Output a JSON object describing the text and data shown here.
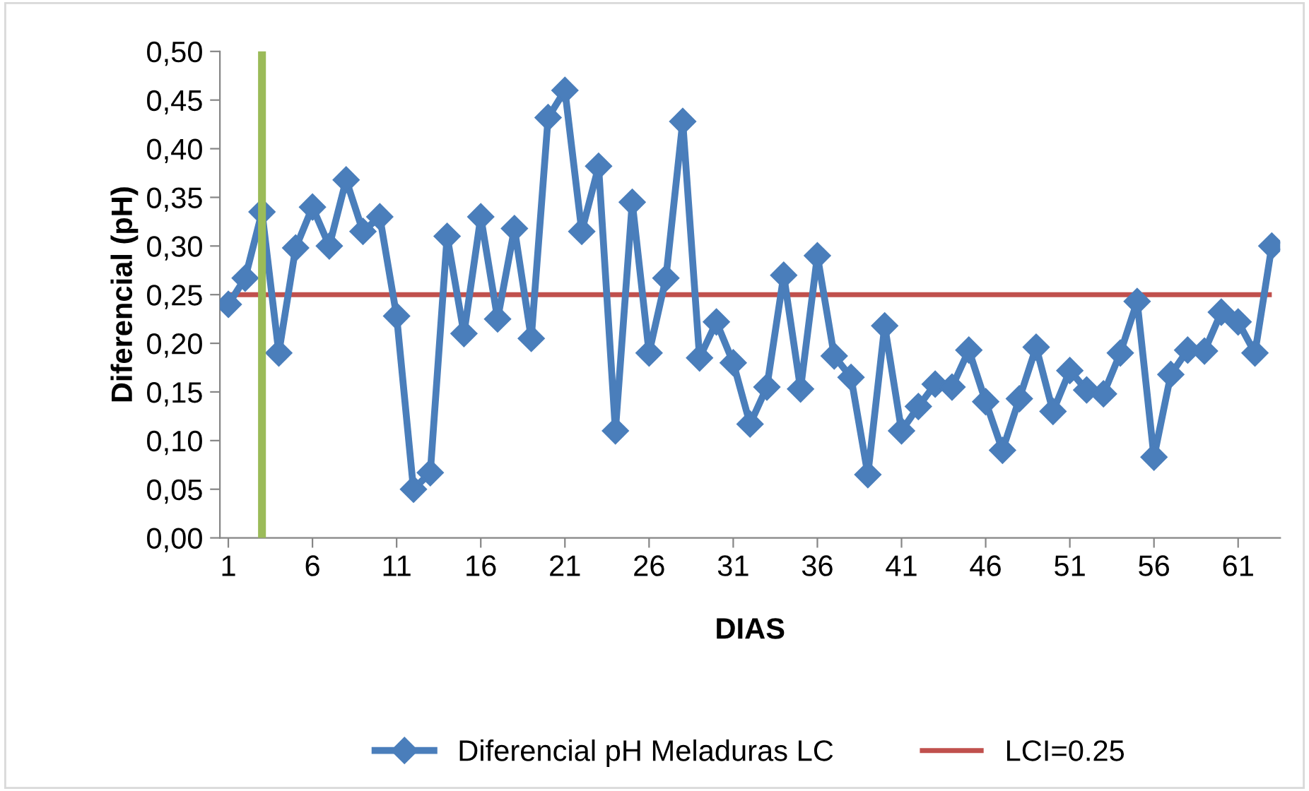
{
  "chart_data": {
    "type": "line",
    "xlabel": "DIAS",
    "ylabel": "Diferencial (pH)",
    "x": [
      1,
      2,
      3,
      4,
      5,
      6,
      7,
      8,
      9,
      10,
      11,
      12,
      13,
      14,
      15,
      16,
      17,
      18,
      19,
      20,
      21,
      22,
      23,
      24,
      25,
      26,
      27,
      28,
      29,
      30,
      31,
      32,
      33,
      34,
      35,
      36,
      37,
      38,
      39,
      40,
      41,
      42,
      43,
      44,
      45,
      46,
      47,
      48,
      49,
      50,
      51,
      52,
      53,
      54,
      55,
      56,
      57,
      58,
      59,
      60,
      61,
      62,
      63
    ],
    "series": [
      {
        "name": "Diferencial pH Meladuras LC",
        "color": "#4a7ebb",
        "values": [
          0.24,
          0.267,
          0.335,
          0.19,
          0.298,
          0.34,
          0.3,
          0.368,
          0.315,
          0.33,
          0.228,
          0.05,
          0.067,
          0.31,
          0.21,
          0.33,
          0.225,
          0.318,
          0.205,
          0.432,
          0.46,
          0.315,
          0.382,
          0.11,
          0.345,
          0.19,
          0.267,
          0.428,
          0.185,
          0.222,
          0.18,
          0.117,
          0.155,
          0.27,
          0.153,
          0.29,
          0.187,
          0.165,
          0.065,
          0.218,
          0.11,
          0.135,
          0.158,
          0.155,
          0.193,
          0.14,
          0.09,
          0.143,
          0.196,
          0.13,
          0.172,
          0.152,
          0.148,
          0.19,
          0.243,
          0.083,
          0.168,
          0.193,
          0.192,
          0.232,
          0.222,
          0.19,
          0.3
        ]
      }
    ],
    "xlim": [
      0.5,
      63.5
    ],
    "xticks": [
      1,
      6,
      11,
      16,
      21,
      26,
      31,
      36,
      41,
      46,
      51,
      56,
      61
    ],
    "ylim": [
      0,
      0.5
    ],
    "yticks": [
      {
        "value": 0,
        "label": "0,00"
      },
      {
        "value": 0.05,
        "label": "0,05"
      },
      {
        "value": 0.1,
        "label": "0,10"
      },
      {
        "value": 0.15,
        "label": "0,15"
      },
      {
        "value": 0.2,
        "label": "0,20"
      },
      {
        "value": 0.25,
        "label": "0,25"
      },
      {
        "value": 0.3,
        "label": "0,30"
      },
      {
        "value": 0.35,
        "label": "0,35"
      },
      {
        "value": 0.4,
        "label": "0,40"
      },
      {
        "value": 0.45,
        "label": "0,45"
      },
      {
        "value": 0.5,
        "label": "0,50"
      }
    ],
    "ref_lines": [
      {
        "axis": "y",
        "value": 0.25,
        "label": "LCI=0.25",
        "color": "#c0504d"
      },
      {
        "axis": "x",
        "value": 3,
        "color": "#9bbb59"
      }
    ],
    "marker": "diamond",
    "line_style": "solid",
    "grid": false,
    "legend": "bottom"
  }
}
